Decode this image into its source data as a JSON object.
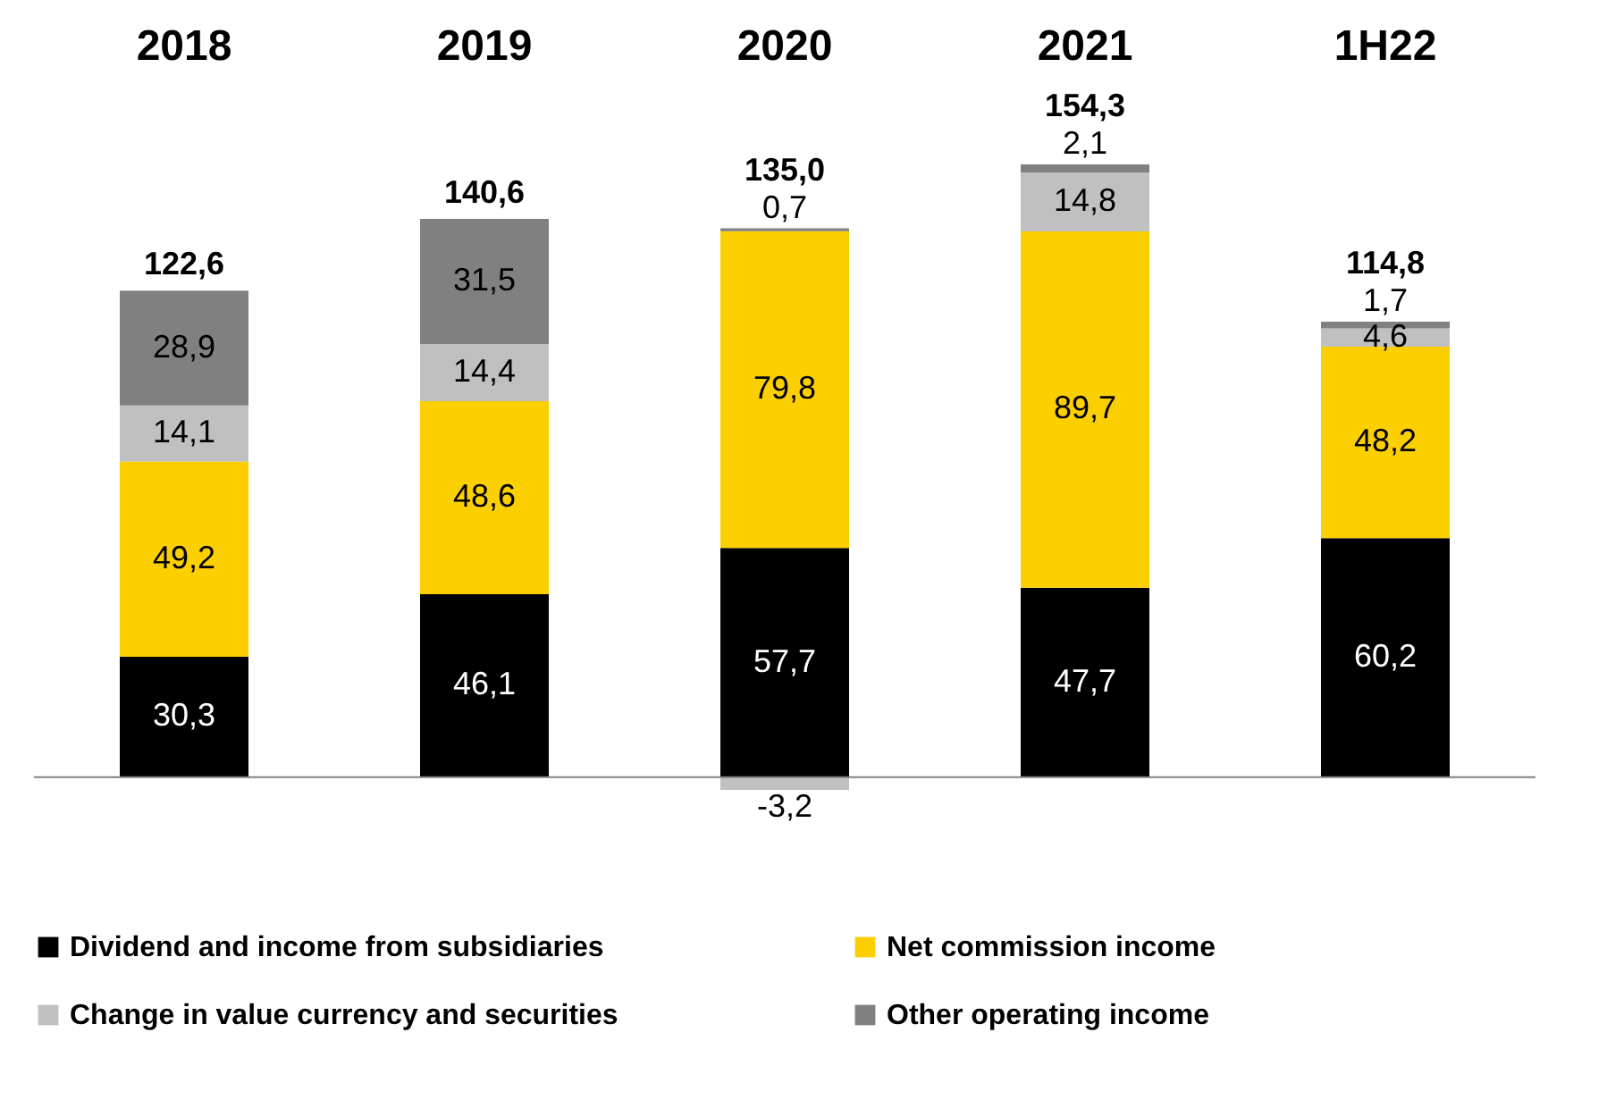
{
  "chart_data": {
    "type": "bar",
    "stacked": true,
    "categories": [
      "2018",
      "2019",
      "2020",
      "2021",
      "1H22"
    ],
    "series": [
      {
        "name": "Dividend and income from subsidiaries",
        "color": "#000000",
        "values": [
          30.3,
          46.1,
          57.7,
          47.7,
          60.2
        ],
        "value_labels": [
          "30,3",
          "46,1",
          "57,7",
          "47,7",
          "60,2"
        ]
      },
      {
        "name": "Net commission income",
        "color": "#fccf00",
        "values": [
          49.2,
          48.6,
          79.8,
          89.7,
          48.2
        ],
        "value_labels": [
          "49,2",
          "48,6",
          "79,8",
          "89,7",
          "48,2"
        ]
      },
      {
        "name": "Change in value currency and securities",
        "color": "#c0c0c0",
        "values": [
          14.1,
          14.4,
          -3.2,
          14.8,
          4.6
        ],
        "value_labels": [
          "14,1",
          "14,4",
          "-3,2",
          "14,8",
          "4,6"
        ]
      },
      {
        "name": "Other operating income",
        "color": "#808080",
        "values": [
          28.9,
          31.5,
          0.7,
          2.1,
          1.7
        ],
        "value_labels": [
          "28,9",
          "31,5",
          "0,7",
          "2,1",
          "1,7"
        ]
      }
    ],
    "totals": [
      "122,6",
      "140,6",
      "135,0",
      "154,3",
      "114,8"
    ],
    "legend": "bottom"
  }
}
